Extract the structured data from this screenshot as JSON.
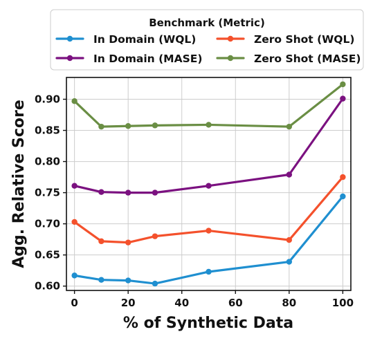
{
  "chart_data": {
    "type": "line",
    "xlabel": "% of Synthetic Data",
    "ylabel": "Agg. Relative Score",
    "xlim": [
      -3,
      103
    ],
    "ylim": [
      0.593,
      0.935
    ],
    "xticks": [
      0,
      20,
      40,
      60,
      80,
      100
    ],
    "yticks": [
      0.6,
      0.65,
      0.7,
      0.75,
      0.8,
      0.85,
      0.9
    ],
    "x": [
      0,
      10,
      20,
      30,
      50,
      80,
      100
    ],
    "grid": true,
    "legend": {
      "title": "Benchmark (Metric)",
      "placement": "top-center, above plot, two columns"
    },
    "series": [
      {
        "name": "In Domain (WQL)",
        "color": "#1f8fd0",
        "values": [
          0.617,
          0.61,
          0.609,
          0.604,
          0.623,
          0.639,
          0.744
        ]
      },
      {
        "name": "Zero Shot (WQL)",
        "color": "#f4512c",
        "values": [
          0.703,
          0.672,
          0.67,
          0.68,
          0.689,
          0.674,
          0.775
        ]
      },
      {
        "name": "In Domain (MASE)",
        "color": "#7b1180",
        "values": [
          0.761,
          0.751,
          0.75,
          0.75,
          0.761,
          0.779,
          0.901
        ]
      },
      {
        "name": "Zero Shot (MASE)",
        "color": "#6a8e44",
        "values": [
          0.897,
          0.856,
          0.857,
          0.858,
          0.859,
          0.856,
          0.924
        ]
      }
    ]
  }
}
